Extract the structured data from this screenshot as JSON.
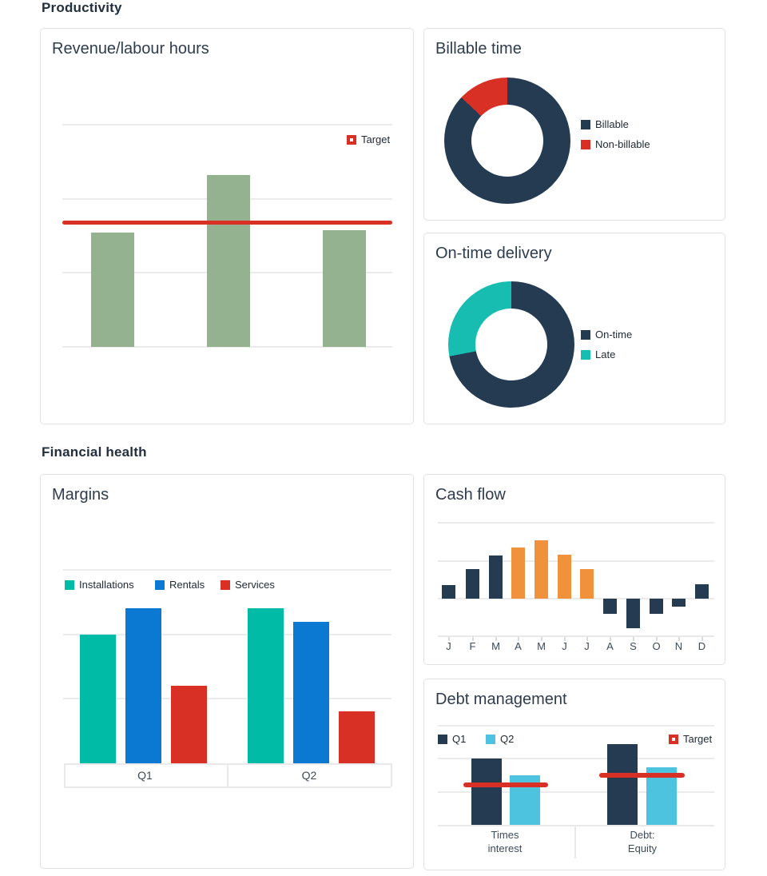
{
  "sections": [
    {
      "title": "Productivity"
    },
    {
      "title": "Financial health"
    }
  ],
  "colors": {
    "navy": "#243B52",
    "red": "#D93025",
    "sage_green": "#95B290",
    "teal_installations": "#00BCA6",
    "teal_late": "#17BDB1",
    "blue_rentals": "#0B78D2",
    "orange": "#F0913B",
    "light_blue_q2": "#4DC3E0",
    "gridline": "#EBEBEB"
  },
  "chart_data": [
    {
      "id": "revenue-labour-hours",
      "type": "bar",
      "title": "Revenue/labour hours",
      "categories": [
        "",
        "",
        ""
      ],
      "values": [
        77,
        116,
        79
      ],
      "target": 84,
      "target_label": "Target",
      "ylim": [
        0,
        150
      ],
      "gridline_values": [
        0,
        50,
        100,
        150
      ],
      "bar_color": "#95B290",
      "target_color": "#D93025",
      "legend_position": "top-right",
      "grid": true
    },
    {
      "id": "billable-time",
      "type": "pie",
      "title": "Billable time",
      "donut": true,
      "slices": [
        {
          "label": "Billable",
          "value": 87,
          "color": "#243B52"
        },
        {
          "label": "Non-billable",
          "value": 13,
          "color": "#D93025"
        }
      ],
      "legend_position": "right"
    },
    {
      "id": "on-time-delivery",
      "type": "pie",
      "title": "On-time delivery",
      "donut": true,
      "slices": [
        {
          "label": "On-time",
          "value": 72,
          "color": "#243B52"
        },
        {
          "label": "Late",
          "value": 28,
          "color": "#17BDB1"
        }
      ],
      "legend_position": "right"
    },
    {
      "id": "margins",
      "type": "bar",
      "title": "Margins",
      "categories": [
        "Q1",
        "Q2"
      ],
      "series": [
        {
          "name": "Installations",
          "color": "#00BCA6",
          "values": [
            20,
            24
          ]
        },
        {
          "name": "Rentals",
          "color": "#0B78D2",
          "values": [
            24,
            22
          ]
        },
        {
          "name": "Services",
          "color": "#D93025",
          "values": [
            12,
            8
          ]
        }
      ],
      "ylim": [
        0,
        30
      ],
      "gridline_values": [
        10,
        20,
        30
      ],
      "legend_position": "top-left",
      "grid": true
    },
    {
      "id": "cash-flow",
      "type": "bar",
      "title": "Cash flow",
      "x": [
        "J",
        "F",
        "M",
        "A",
        "M",
        "J",
        "J",
        "A",
        "S",
        "O",
        "N",
        "D"
      ],
      "values": [
        18,
        39,
        57,
        67,
        77,
        58,
        39,
        -20,
        -39,
        -20,
        -11,
        19
      ],
      "default_color": "#243B52",
      "highlight_color": "#F0913B",
      "highlight_indices": [
        3,
        4,
        5,
        6
      ],
      "ylim": [
        -50,
        100
      ],
      "gridline_values": [
        0,
        50,
        100
      ],
      "grid": true
    },
    {
      "id": "debt-management",
      "type": "bar",
      "title": "Debt management",
      "categories": [
        "Times interest",
        "Debt: Equity"
      ],
      "series": [
        {
          "name": "Q1",
          "color": "#243B52",
          "values": [
            2.0,
            2.45
          ]
        },
        {
          "name": "Q2",
          "color": "#4DC3E0",
          "values": [
            1.5,
            1.75
          ]
        }
      ],
      "targets": [
        1.2,
        1.5
      ],
      "target_label": "Target",
      "target_color": "#D93025",
      "ylim": [
        0,
        3
      ],
      "gridline_values": [
        1,
        2,
        3
      ],
      "legend_position": "top",
      "grid": true
    }
  ]
}
